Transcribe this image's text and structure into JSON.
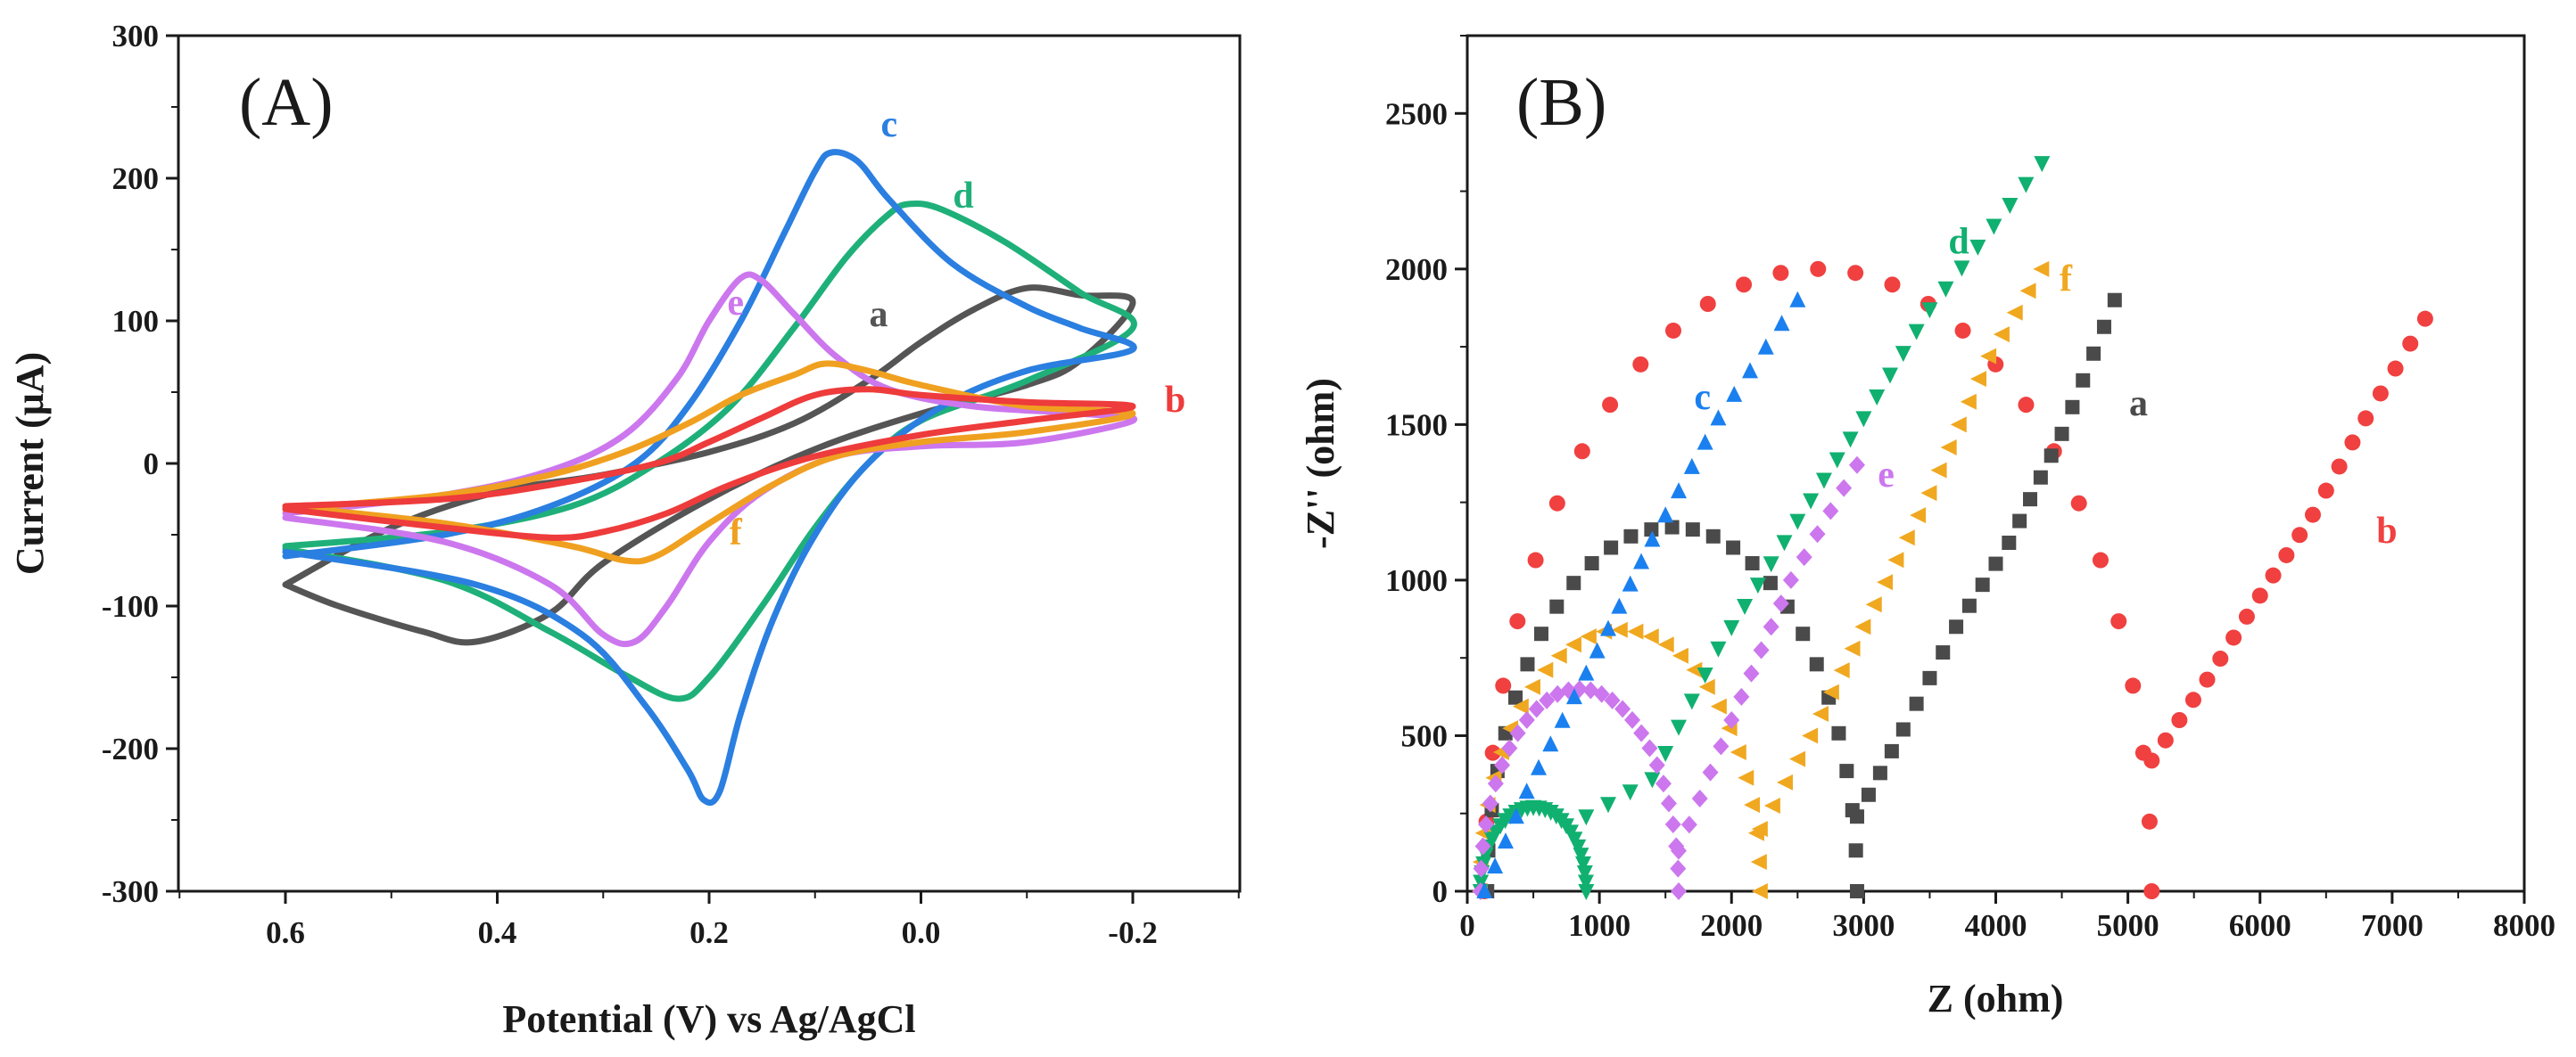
{
  "chart_data": [
    {
      "panel": "(A)",
      "type": "line",
      "xlabel": "Potential (V) vs Ag/AgCl",
      "ylabel": "Current (μA)",
      "xlim": [
        0.7,
        -0.3
      ],
      "ylim": [
        -300,
        300
      ],
      "xticks": [
        "0.6",
        "0.4",
        "0.2",
        "0.0",
        "-0.2"
      ],
      "yticks": [
        "300",
        "200",
        "100",
        "0",
        "-100",
        "-200",
        "-300"
      ],
      "series": [
        {
          "name": "a",
          "color": "#555555",
          "pos": [
            -0.2,
            0.6
          ],
          "label_at": [
            0.04,
            105
          ],
          "anodic": [
            [
              0.6,
              -85
            ],
            [
              0.5,
              -45
            ],
            [
              0.4,
              -20
            ],
            [
              0.3,
              -8
            ],
            [
              0.2,
              8
            ],
            [
              0.12,
              28
            ],
            [
              0.05,
              58
            ],
            [
              0.0,
              85
            ],
            [
              -0.05,
              108
            ],
            [
              -0.1,
              123
            ],
            [
              -0.15,
              118
            ],
            [
              -0.2,
              113
            ]
          ],
          "cathodic": [
            [
              -0.2,
              100
            ],
            [
              -0.15,
              72
            ],
            [
              -0.1,
              55
            ],
            [
              0.0,
              35
            ],
            [
              0.1,
              10
            ],
            [
              0.2,
              -25
            ],
            [
              0.3,
              -70
            ],
            [
              0.35,
              -105
            ],
            [
              0.42,
              -125
            ],
            [
              0.47,
              -118
            ],
            [
              0.55,
              -100
            ],
            [
              0.6,
              -85
            ]
          ]
        },
        {
          "name": "b",
          "color": "#ee3b3b",
          "pos": [
            -0.2,
            0.6
          ],
          "label_at": [
            -0.24,
            45
          ],
          "anodic": [
            [
              0.6,
              -30
            ],
            [
              0.45,
              -25
            ],
            [
              0.35,
              -15
            ],
            [
              0.25,
              0
            ],
            [
              0.2,
              15
            ],
            [
              0.15,
              32
            ],
            [
              0.1,
              48
            ],
            [
              0.05,
              52
            ],
            [
              0.0,
              48
            ],
            [
              -0.1,
              43
            ],
            [
              -0.2,
              40
            ]
          ],
          "cathodic": [
            [
              -0.2,
              35
            ],
            [
              -0.1,
              30
            ],
            [
              0.0,
              20
            ],
            [
              0.1,
              5
            ],
            [
              0.18,
              -15
            ],
            [
              0.24,
              -35
            ],
            [
              0.3,
              -48
            ],
            [
              0.35,
              -52
            ],
            [
              0.45,
              -45
            ],
            [
              0.6,
              -32
            ]
          ]
        },
        {
          "name": "c",
          "color": "#2a7fe0",
          "pos": [
            -0.2,
            0.6
          ],
          "label_at": [
            0.03,
            238
          ],
          "anodic": [
            [
              0.6,
              -65
            ],
            [
              0.45,
              -50
            ],
            [
              0.35,
              -30
            ],
            [
              0.27,
              0
            ],
            [
              0.22,
              40
            ],
            [
              0.17,
              100
            ],
            [
              0.13,
              160
            ],
            [
              0.1,
              205
            ],
            [
              0.085,
              218
            ],
            [
              0.06,
              212
            ],
            [
              0.03,
              185
            ],
            [
              -0.03,
              140
            ],
            [
              -0.1,
              110
            ],
            [
              -0.15,
              95
            ],
            [
              -0.2,
              80
            ]
          ],
          "cathodic": [
            [
              -0.2,
              85
            ],
            [
              -0.1,
              65
            ],
            [
              -0.02,
              40
            ],
            [
              0.05,
              0
            ],
            [
              0.1,
              -50
            ],
            [
              0.14,
              -110
            ],
            [
              0.17,
              -175
            ],
            [
              0.19,
              -230
            ],
            [
              0.205,
              -236
            ],
            [
              0.22,
              -215
            ],
            [
              0.26,
              -170
            ],
            [
              0.32,
              -120
            ],
            [
              0.42,
              -85
            ],
            [
              0.6,
              -62
            ]
          ]
        },
        {
          "name": "d",
          "color": "#1fb07a",
          "pos": [
            -0.2,
            0.6
          ],
          "label_at": [
            -0.04,
            188
          ],
          "anodic": [
            [
              0.6,
              -58
            ],
            [
              0.45,
              -48
            ],
            [
              0.33,
              -30
            ],
            [
              0.25,
              0
            ],
            [
              0.18,
              40
            ],
            [
              0.12,
              95
            ],
            [
              0.07,
              145
            ],
            [
              0.03,
              175
            ],
            [
              0.01,
              182
            ],
            [
              -0.02,
              178
            ],
            [
              -0.08,
              155
            ],
            [
              -0.15,
              120
            ],
            [
              -0.2,
              95
            ]
          ],
          "cathodic": [
            [
              -0.2,
              85
            ],
            [
              -0.1,
              58
            ],
            [
              0.0,
              30
            ],
            [
              0.05,
              0
            ],
            [
              0.1,
              -45
            ],
            [
              0.15,
              -100
            ],
            [
              0.2,
              -150
            ],
            [
              0.23,
              -165
            ],
            [
              0.28,
              -148
            ],
            [
              0.35,
              -118
            ],
            [
              0.45,
              -82
            ],
            [
              0.6,
              -60
            ]
          ]
        },
        {
          "name": "e",
          "color": "#cc77ee",
          "pos": [
            -0.2,
            0.6
          ],
          "label_at": [
            0.175,
            113
          ],
          "anodic": [
            [
              0.6,
              -35
            ],
            [
              0.45,
              -22
            ],
            [
              0.35,
              -5
            ],
            [
              0.28,
              20
            ],
            [
              0.23,
              60
            ],
            [
              0.2,
              100
            ],
            [
              0.17,
              130
            ],
            [
              0.15,
              128
            ],
            [
              0.12,
              105
            ],
            [
              0.08,
              75
            ],
            [
              0.03,
              52
            ],
            [
              -0.05,
              40
            ],
            [
              -0.15,
              35
            ],
            [
              -0.2,
              30
            ]
          ],
          "cathodic": [
            [
              -0.2,
              20
            ],
            [
              -0.1,
              15
            ],
            [
              0.0,
              12
            ],
            [
              0.08,
              5
            ],
            [
              0.15,
              -20
            ],
            [
              0.2,
              -55
            ],
            [
              0.24,
              -100
            ],
            [
              0.27,
              -125
            ],
            [
              0.3,
              -120
            ],
            [
              0.35,
              -85
            ],
            [
              0.45,
              -55
            ],
            [
              0.6,
              -38
            ]
          ]
        },
        {
          "name": "f",
          "color": "#f0a020",
          "pos": [
            -0.2,
            0.6
          ],
          "label_at": [
            0.175,
            -48
          ],
          "anodic": [
            [
              0.6,
              -32
            ],
            [
              0.45,
              -22
            ],
            [
              0.35,
              -8
            ],
            [
              0.28,
              8
            ],
            [
              0.22,
              28
            ],
            [
              0.17,
              48
            ],
            [
              0.12,
              62
            ],
            [
              0.09,
              70
            ],
            [
              0.05,
              65
            ],
            [
              0.0,
              55
            ],
            [
              -0.1,
              40
            ],
            [
              -0.2,
              35
            ]
          ],
          "cathodic": [
            [
              -0.2,
              30
            ],
            [
              -0.1,
              22
            ],
            [
              0.0,
              15
            ],
            [
              0.08,
              5
            ],
            [
              0.14,
              -15
            ],
            [
              0.2,
              -42
            ],
            [
              0.25,
              -65
            ],
            [
              0.28,
              -68
            ],
            [
              0.33,
              -58
            ],
            [
              0.45,
              -42
            ],
            [
              0.6,
              -30
            ]
          ]
        }
      ]
    },
    {
      "panel": "(B)",
      "type": "scatter",
      "xlabel": "Z (ohm)",
      "ylabel": "-Z'' (ohm)",
      "xlim": [
        0,
        8000
      ],
      "ylim": [
        0,
        2750
      ],
      "xticks": [
        "0",
        "1000",
        "2000",
        "3000",
        "4000",
        "5000",
        "6000",
        "7000",
        "8000"
      ],
      "yticks": [
        "0",
        "500",
        "1000",
        "1500",
        "2000",
        "2500"
      ],
      "series": [
        {
          "name": "a",
          "color": "#4a4a4a",
          "marker": "square",
          "label_at": [
            5080,
            1570
          ],
          "r0": 150,
          "semicircle_end": 2950,
          "semicircle_h": 1170,
          "tail": [
            [
              2950,
              240
            ],
            [
              3300,
              520
            ],
            [
              3700,
              850
            ],
            [
              4100,
              1120
            ],
            [
              4500,
              1470
            ],
            [
              4900,
              1900
            ]
          ]
        },
        {
          "name": "b",
          "color": "#f04040",
          "marker": "circle",
          "label_at": [
            6960,
            1160
          ],
          "r0": 130,
          "semicircle_end": 5180,
          "semicircle_h": 2000,
          "tail": [
            [
              5180,
              420
            ],
            [
              5600,
              680
            ],
            [
              6000,
              950
            ],
            [
              6400,
              1210
            ],
            [
              6800,
              1520
            ],
            [
              7250,
              1840
            ]
          ]
        },
        {
          "name": "c",
          "color": "#1a80f0",
          "marker": "triangle-up",
          "label_at": [
            1780,
            1590
          ],
          "r0": 100,
          "semicircle_end": 0,
          "semicircle_h": 0,
          "tail": [
            [
              130,
              0
            ],
            [
              450,
              320
            ],
            [
              900,
              700
            ],
            [
              1400,
              1130
            ],
            [
              1900,
              1520
            ],
            [
              2500,
              1900
            ]
          ]
        },
        {
          "name": "d",
          "color": "#10b070",
          "marker": "triangle-down",
          "label_at": [
            3720,
            2090
          ],
          "r0": 100,
          "semicircle_end": 900,
          "semicircle_h": 270,
          "tail": [
            [
              900,
              240
            ],
            [
              1400,
              360
            ],
            [
              1900,
              780
            ],
            [
              2500,
              1190
            ],
            [
              3000,
              1520
            ],
            [
              3500,
              1870
            ],
            [
              4350,
              2340
            ]
          ]
        },
        {
          "name": "e",
          "color": "#cc77ee",
          "marker": "diamond",
          "label_at": [
            3170,
            1340
          ],
          "r0": 100,
          "semicircle_end": 1600,
          "semicircle_h": 650,
          "tail": [
            [
              1600,
              130
            ],
            [
              2000,
              550
            ],
            [
              2450,
              1000
            ],
            [
              2950,
              1370
            ]
          ]
        },
        {
          "name": "f",
          "color": "#f0a820",
          "marker": "triangle-left",
          "label_at": [
            4530,
            1970
          ],
          "r0": 100,
          "semicircle_end": 2220,
          "semicircle_h": 840,
          "tail": [
            [
              2220,
              200
            ],
            [
              2600,
              500
            ],
            [
              3000,
              850
            ],
            [
              3500,
              1280
            ],
            [
              3950,
              1720
            ],
            [
              4350,
              2000
            ]
          ]
        }
      ]
    }
  ]
}
